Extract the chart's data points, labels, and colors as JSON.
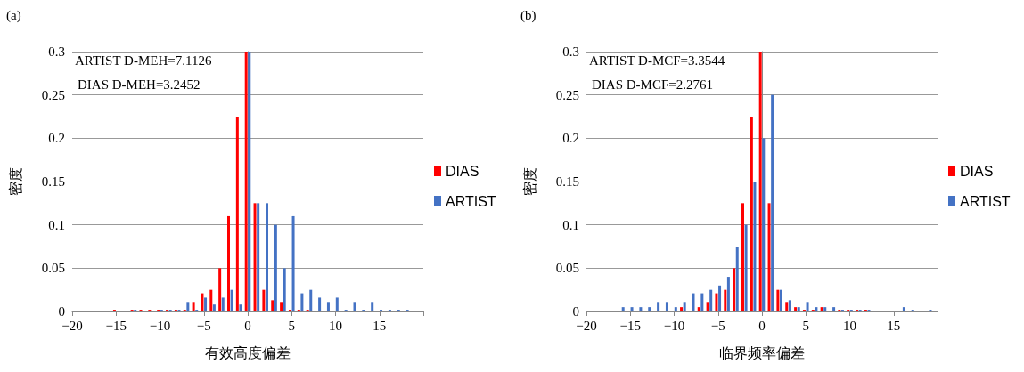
{
  "chart_data": [
    {
      "type": "bar",
      "title": "(a)",
      "xlabel": "有效高度偏差",
      "ylabel": "密度",
      "annotations": [
        "ARTIST D-MEH=7.1126",
        "DIAS D-MEH=3.2452"
      ],
      "xlim": [
        -20,
        20
      ],
      "xticks": [
        {
          "value": -20,
          "label": "−20"
        },
        {
          "value": -15,
          "label": "−15"
        },
        {
          "value": -10,
          "label": "−10"
        },
        {
          "value": -5,
          "label": "−5"
        },
        0,
        5,
        10,
        15,
        {
          "value": 20,
          "label": null
        }
      ],
      "ylim": [
        0,
        0.3
      ],
      "yticks": [
        0,
        0.05,
        0.1,
        0.15,
        0.2,
        0.25,
        0.3
      ],
      "grid": "y",
      "legend": "right",
      "series": [
        {
          "name": "DIAS",
          "color": "#ff0000",
          "x": [
            -15,
            -13,
            -12,
            -11,
            -10,
            -9,
            -8,
            -7,
            -6,
            -5,
            -4,
            -3,
            -2,
            -1,
            0,
            1,
            2,
            3,
            4,
            5,
            6,
            7
          ],
          "values": [
            0.002,
            0.002,
            0.002,
            0.002,
            0.002,
            0.002,
            0.002,
            0.002,
            0.011,
            0.021,
            0.025,
            0.05,
            0.11,
            0.225,
            0.3,
            0.125,
            0.025,
            0.013,
            0.011,
            0.002,
            0.002,
            0.002
          ]
        },
        {
          "name": "ARTIST",
          "color": "#4472c4",
          "x": [
            -13,
            -10,
            -9,
            -8,
            -7,
            -6,
            -5,
            -4,
            -3,
            -2,
            -1,
            0,
            1,
            2,
            3,
            4,
            5,
            6,
            7,
            8,
            9,
            10,
            11,
            12,
            13,
            14,
            15,
            16,
            17,
            18
          ],
          "values": [
            0.002,
            0.002,
            0.002,
            0.002,
            0.011,
            0.002,
            0.016,
            0.008,
            0.016,
            0.025,
            0.008,
            0.3,
            0.125,
            0.125,
            0.1,
            0.05,
            0.11,
            0.021,
            0.025,
            0.016,
            0.011,
            0.016,
            0.002,
            0.011,
            0.002,
            0.011,
            0.002,
            0.002,
            0.002,
            0.002
          ]
        }
      ]
    },
    {
      "type": "bar",
      "title": "(b)",
      "xlabel": "临界频率偏差",
      "ylabel": "密度",
      "annotations": [
        "ARTIST D-MCF=3.3544",
        "DIAS D-MCF=2.2761"
      ],
      "xlim": [
        -20,
        20
      ],
      "xticks": [
        {
          "value": -20,
          "label": "−20"
        },
        {
          "value": -15,
          "label": "−15"
        },
        {
          "value": -10,
          "label": "−10"
        },
        {
          "value": -5,
          "label": "−5"
        },
        0,
        5,
        10,
        15,
        {
          "value": 20,
          "label": null
        }
      ],
      "ylim": [
        0,
        0.3
      ],
      "yticks": [
        0,
        0.05,
        0.1,
        0.15,
        0.2,
        0.25,
        0.3
      ],
      "grid": "y",
      "legend": "right",
      "series": [
        {
          "name": "DIAS",
          "color": "#ff0000",
          "x": [
            -9,
            -7,
            -6,
            -5,
            -4,
            -3,
            -2,
            -1,
            0,
            1,
            2,
            3,
            4,
            5,
            6,
            7,
            9,
            10,
            11,
            12
          ],
          "values": [
            0.005,
            0.005,
            0.011,
            0.021,
            0.025,
            0.05,
            0.125,
            0.225,
            0.3,
            0.125,
            0.025,
            0.011,
            0.005,
            0.002,
            0.002,
            0.005,
            0.002,
            0.002,
            0.002,
            0.002
          ]
        },
        {
          "name": "ARTIST",
          "color": "#4472c4",
          "x": [
            -16,
            -15,
            -14,
            -13,
            -12,
            -11,
            -10,
            -9,
            -8,
            -7,
            -6,
            -5,
            -4,
            -3,
            -2,
            -1,
            0,
            1,
            2,
            3,
            4,
            5,
            6,
            7,
            8,
            9,
            10,
            11,
            12,
            16,
            17,
            19
          ],
          "values": [
            0.005,
            0.005,
            0.005,
            0.005,
            0.011,
            0.011,
            0.005,
            0.011,
            0.021,
            0.021,
            0.025,
            0.03,
            0.04,
            0.075,
            0.1,
            0.15,
            0.2,
            0.25,
            0.025,
            0.013,
            0.005,
            0.011,
            0.005,
            0.005,
            0.005,
            0.002,
            0.002,
            0.002,
            0.002,
            0.005,
            0.002,
            0.002
          ]
        }
      ]
    }
  ]
}
